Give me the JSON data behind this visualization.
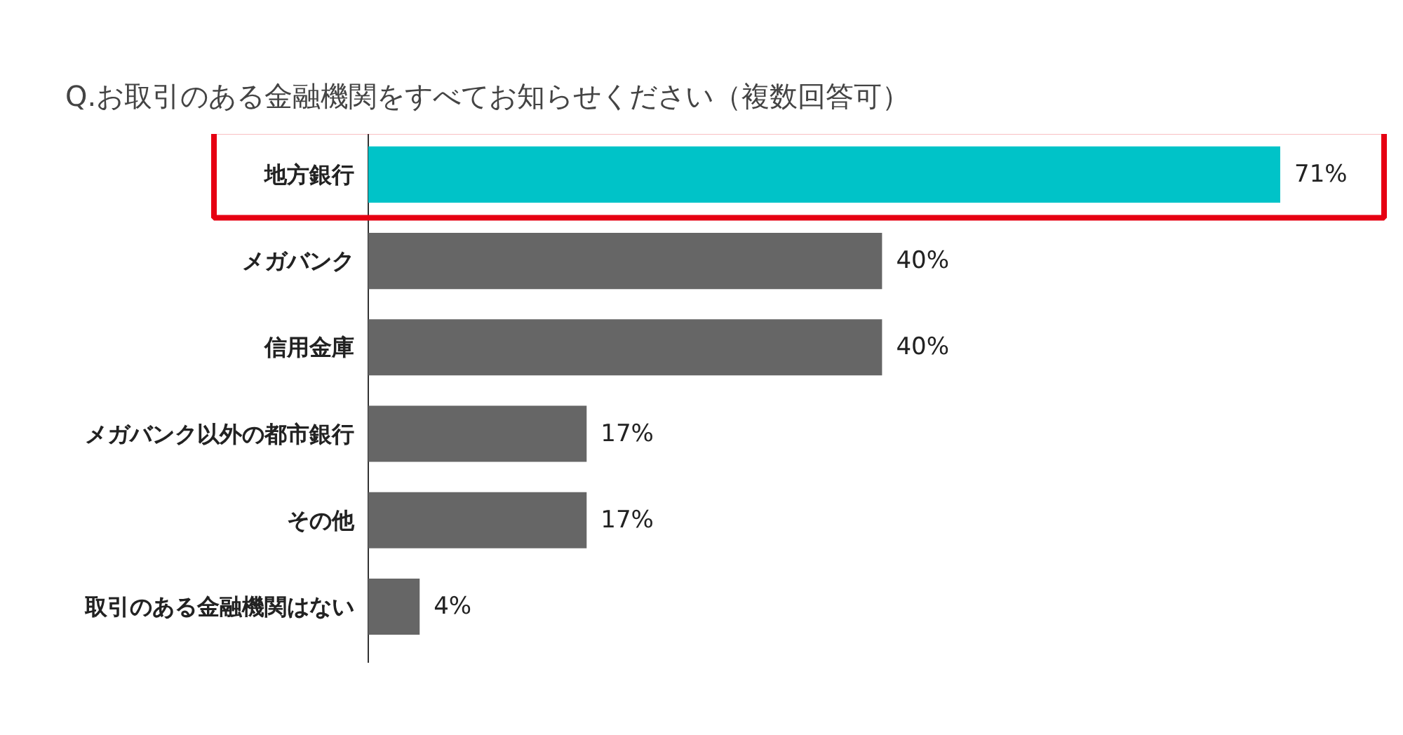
{
  "chart_data": {
    "type": "bar",
    "orientation": "horizontal",
    "title": "Q.お取引のある金融機関をすべてお知らせください（複数回答可）",
    "categories": [
      "地方銀行",
      "メガバンク",
      "信用金庫",
      "メガバンク以外の都市銀行",
      "その他",
      "取引のある金融機関はない"
    ],
    "values": [
      71,
      40,
      40,
      17,
      17,
      4
    ],
    "colors": [
      "#00c3c8",
      "#666666",
      "#666666",
      "#666666",
      "#666666",
      "#666666"
    ],
    "value_labels": [
      "71%",
      "40%",
      "40%",
      "17%",
      "17%",
      "4%"
    ],
    "grid": false
  }
}
